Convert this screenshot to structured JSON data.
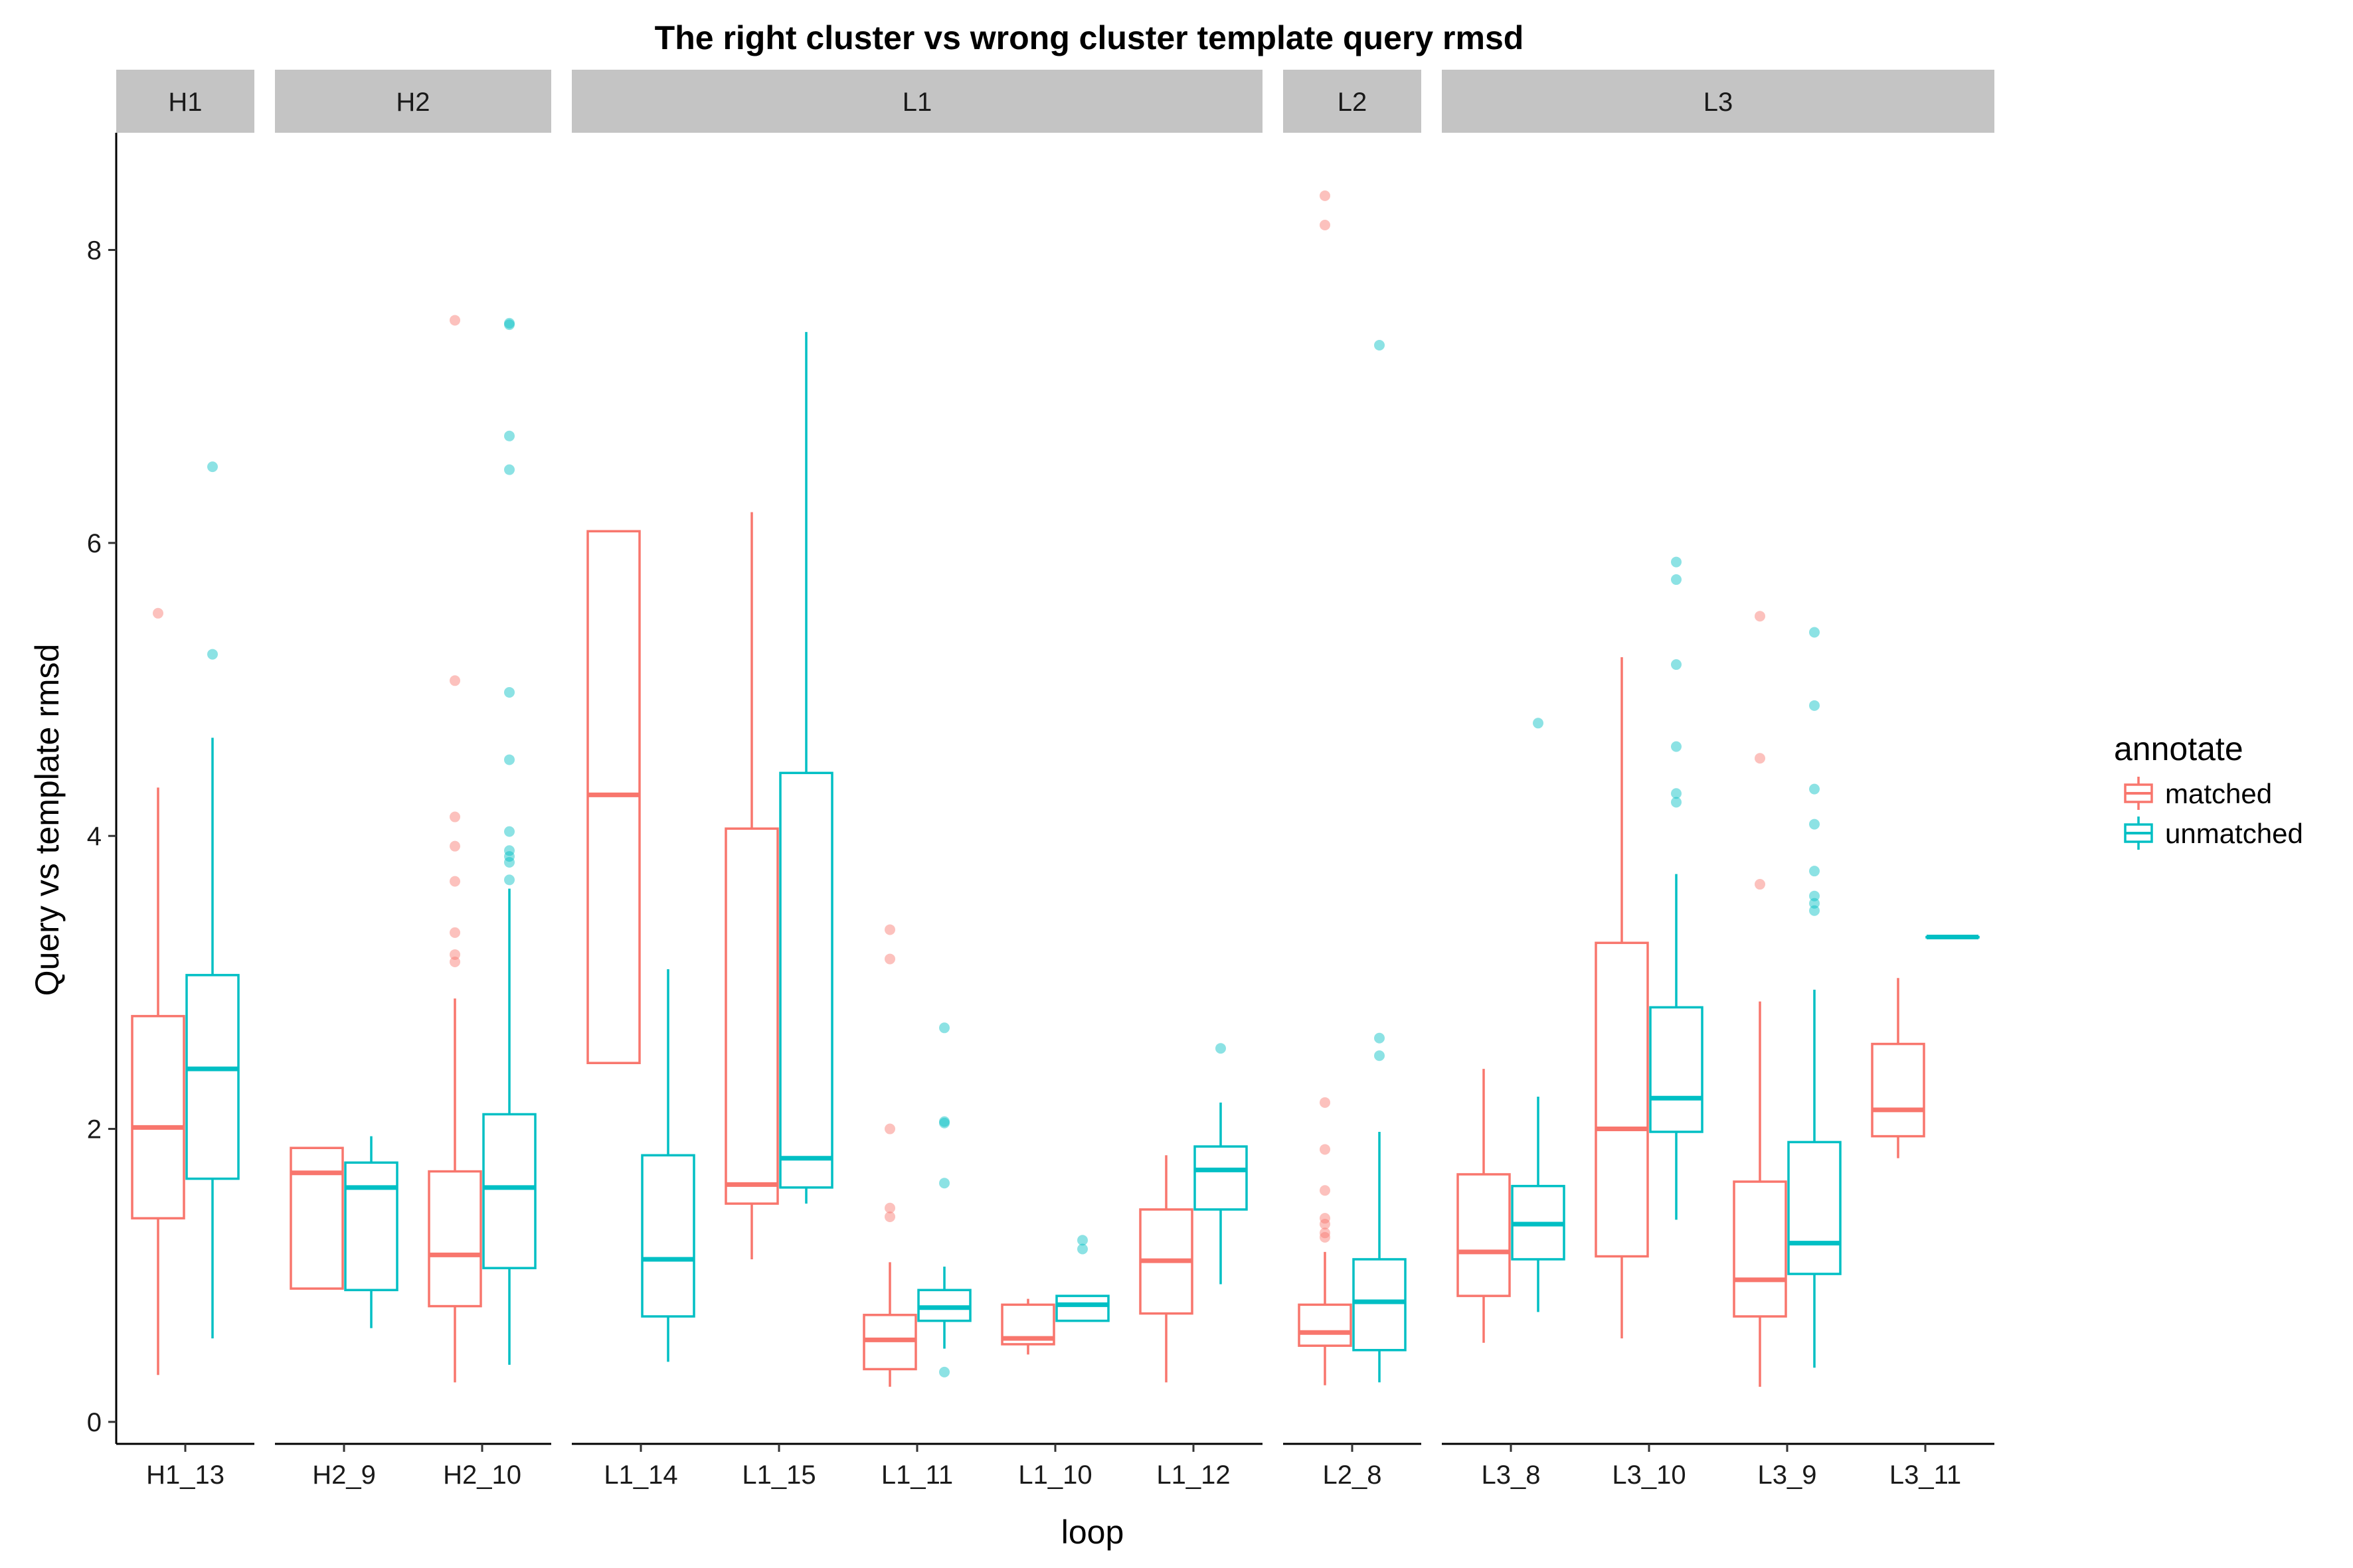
{
  "chart_data": {
    "type": "boxplot",
    "title": "The right cluster vs wrong cluster template query rmsd",
    "xlabel": "loop",
    "ylabel": "Query vs template rmsd",
    "ylim": [
      -0.15,
      8.8
    ],
    "yticks": [
      0,
      2,
      4,
      6,
      8
    ],
    "grid": false,
    "legend": {
      "title": "annotate",
      "position": "right",
      "entries": [
        "matched",
        "unmatched"
      ]
    },
    "colors": {
      "matched": "#F8766D",
      "unmatched": "#00BFC4",
      "strip_fill": "#C4C4C4"
    },
    "facets": [
      {
        "label": "H1",
        "categories": [
          {
            "name": "H1_13",
            "matched": {
              "lower": 0.32,
              "q1": 1.39,
              "median": 2.01,
              "q3": 2.77,
              "upper": 4.33,
              "outliers": [
                5.52
              ]
            },
            "unmatched": {
              "lower": 0.57,
              "q1": 1.66,
              "median": 2.41,
              "q3": 3.05,
              "upper": 4.67,
              "outliers": [
                5.24,
                6.52
              ]
            }
          }
        ]
      },
      {
        "label": "H2",
        "categories": [
          {
            "name": "H2_9",
            "matched": {
              "lower": 0.91,
              "q1": 0.91,
              "median": 1.7,
              "q3": 1.87,
              "upper": 1.87,
              "outliers": []
            },
            "unmatched": {
              "lower": 0.64,
              "q1": 0.9,
              "median": 1.6,
              "q3": 1.77,
              "upper": 1.95,
              "outliers": []
            }
          },
          {
            "name": "H2_10",
            "matched": {
              "lower": 0.27,
              "q1": 0.79,
              "median": 1.14,
              "q3": 1.71,
              "upper": 2.89,
              "outliers": [
                3.14,
                3.19,
                3.34,
                3.69,
                3.93,
                4.13,
                5.06,
                7.52
              ]
            },
            "unmatched": {
              "lower": 0.39,
              "q1": 1.05,
              "median": 1.6,
              "q3": 2.1,
              "upper": 3.64,
              "outliers": [
                3.7,
                3.82,
                3.86,
                3.9,
                4.03,
                4.52,
                4.98,
                6.5,
                6.73,
                7.49,
                7.5
              ]
            }
          }
        ]
      },
      {
        "label": "L1",
        "categories": [
          {
            "name": "L1_14",
            "matched": {
              "lower": 2.45,
              "q1": 2.45,
              "median": 4.28,
              "q3": 6.08,
              "upper": 6.08,
              "outliers": []
            },
            "unmatched": {
              "lower": 0.41,
              "q1": 0.72,
              "median": 1.11,
              "q3": 1.82,
              "upper": 3.09,
              "outliers": []
            }
          },
          {
            "name": "L1_15",
            "matched": {
              "lower": 1.11,
              "q1": 1.49,
              "median": 1.62,
              "q3": 4.05,
              "upper": 6.21,
              "outliers": []
            },
            "unmatched": {
              "lower": 1.49,
              "q1": 1.6,
              "median": 1.8,
              "q3": 4.43,
              "upper": 7.44,
              "outliers": []
            }
          },
          {
            "name": "L1_11",
            "matched": {
              "lower": 0.24,
              "q1": 0.36,
              "median": 0.56,
              "q3": 0.73,
              "upper": 1.09,
              "outliers": [
                1.4,
                1.46,
                2.0,
                3.16,
                3.36
              ]
            },
            "unmatched": {
              "lower": 0.5,
              "q1": 0.69,
              "median": 0.78,
              "q3": 0.9,
              "upper": 1.06,
              "outliers": [
                0.34,
                1.63,
                2.04,
                2.05,
                2.69
              ]
            }
          },
          {
            "name": "L1_10",
            "matched": {
              "lower": 0.46,
              "q1": 0.53,
              "median": 0.57,
              "q3": 0.8,
              "upper": 0.84,
              "outliers": []
            },
            "unmatched": {
              "lower": 0.69,
              "q1": 0.69,
              "median": 0.8,
              "q3": 0.86,
              "upper": 0.86,
              "outliers": [
                1.18,
                1.24
              ]
            }
          },
          {
            "name": "L1_12",
            "matched": {
              "lower": 0.27,
              "q1": 0.74,
              "median": 1.1,
              "q3": 1.45,
              "upper": 1.82,
              "outliers": []
            },
            "unmatched": {
              "lower": 0.94,
              "q1": 1.45,
              "median": 1.72,
              "q3": 1.88,
              "upper": 2.18,
              "outliers": [
                2.55
              ]
            }
          }
        ]
      },
      {
        "label": "L2",
        "categories": [
          {
            "name": "L2_8",
            "matched": {
              "lower": 0.25,
              "q1": 0.52,
              "median": 0.61,
              "q3": 0.8,
              "upper": 1.16,
              "outliers": [
                1.26,
                1.29,
                1.35,
                1.39,
                1.58,
                1.86,
                2.18,
                8.17,
                8.37
              ]
            },
            "unmatched": {
              "lower": 0.27,
              "q1": 0.49,
              "median": 0.82,
              "q3": 1.11,
              "upper": 1.98,
              "outliers": [
                2.5,
                2.62,
                7.35
              ]
            }
          }
        ]
      },
      {
        "label": "L3",
        "categories": [
          {
            "name": "L3_8",
            "matched": {
              "lower": 0.54,
              "q1": 0.86,
              "median": 1.16,
              "q3": 1.69,
              "upper": 2.41,
              "outliers": []
            },
            "unmatched": {
              "lower": 0.75,
              "q1": 1.11,
              "median": 1.35,
              "q3": 1.61,
              "upper": 2.22,
              "outliers": [
                4.77
              ]
            }
          },
          {
            "name": "L3_10",
            "matched": {
              "lower": 0.57,
              "q1": 1.13,
              "median": 2.0,
              "q3": 3.27,
              "upper": 5.22,
              "outliers": []
            },
            "unmatched": {
              "lower": 1.38,
              "q1": 1.98,
              "median": 2.21,
              "q3": 2.83,
              "upper": 3.74,
              "outliers": [
                4.23,
                4.29,
                4.61,
                5.17,
                5.75,
                5.87
              ]
            }
          },
          {
            "name": "L3_9",
            "matched": {
              "lower": 0.24,
              "q1": 0.72,
              "median": 0.97,
              "q3": 1.64,
              "upper": 2.87,
              "outliers": [
                3.67,
                4.53,
                5.5
              ]
            },
            "unmatched": {
              "lower": 0.37,
              "q1": 1.01,
              "median": 1.22,
              "q3": 1.91,
              "upper": 2.95,
              "outliers": [
                3.49,
                3.54,
                3.59,
                3.76,
                4.08,
                4.32,
                4.89,
                5.39
              ]
            }
          },
          {
            "name": "L3_11",
            "matched": {
              "lower": 1.8,
              "q1": 1.95,
              "median": 2.13,
              "q3": 2.58,
              "upper": 3.03,
              "outliers": []
            },
            "unmatched": {
              "lower": 3.31,
              "q1": 3.31,
              "median": 3.31,
              "q3": 3.31,
              "upper": 3.31,
              "outliers": []
            }
          }
        ]
      }
    ]
  }
}
